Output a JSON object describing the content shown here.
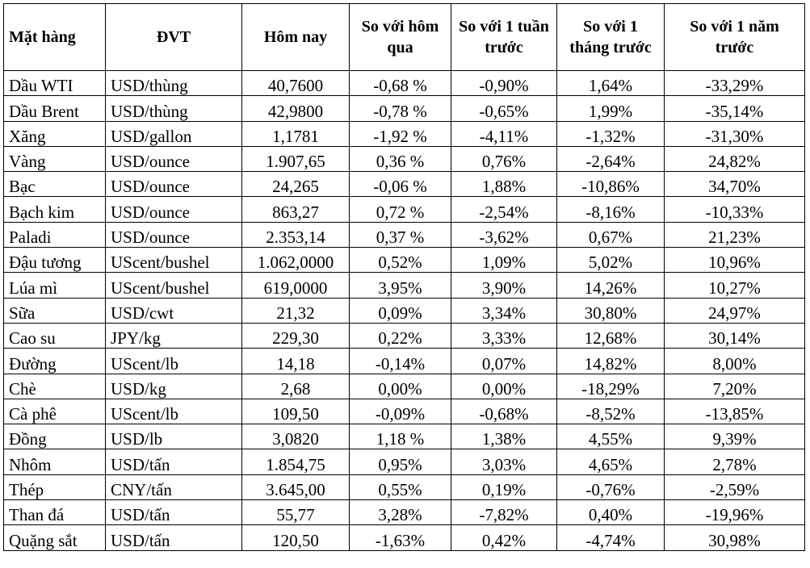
{
  "table": {
    "headers": [
      "Mặt hàng",
      "ĐVT",
      "Hôm nay",
      "So với hôm qua",
      "So với 1 tuần trước",
      "So với 1 tháng trước",
      "So với 1 năm trước"
    ],
    "rows": [
      [
        "Dầu WTI",
        "USD/thùng",
        "40,7600",
        "-0,68 %",
        "-0,90%",
        "1,64%",
        "-33,29%"
      ],
      [
        "Dầu Brent",
        "USD/thùng",
        "42,9800",
        "-0,78 %",
        "-0,65%",
        "1,99%",
        "-35,14%"
      ],
      [
        "Xăng",
        "USD/gallon",
        "1,1781",
        "-1,92 %",
        "-4,11%",
        "-1,32%",
        "-31,30%"
      ],
      [
        "Vàng",
        "USD/ounce",
        "1.907,65",
        "0,36 %",
        "0,76%",
        "-2,64%",
        "24,82%"
      ],
      [
        "Bạc",
        "USD/ounce",
        "24,265",
        "-0,06 %",
        "1,88%",
        "-10,86%",
        "34,70%"
      ],
      [
        "Bạch kim",
        "USD/ounce",
        "863,27",
        "0,72 %",
        "-2,54%",
        "-8,16%",
        "-10,33%"
      ],
      [
        "Paladi",
        "USD/ounce",
        "2.353,14",
        "0,37 %",
        "-3,62%",
        "0,67%",
        "21,23%"
      ],
      [
        "Đậu tương",
        "UScent/bushel",
        "1.062,0000",
        "0,52%",
        "1,09%",
        "5,02%",
        "10,96%"
      ],
      [
        "Lúa mì",
        "UScent/bushel",
        "619,0000",
        "3,95%",
        "3,90%",
        "14,26%",
        "10,27%"
      ],
      [
        "Sữa",
        "USD/cwt",
        "21,32",
        "0,09%",
        "3,34%",
        "30,80%",
        "24,97%"
      ],
      [
        "Cao su",
        "JPY/kg",
        "229,30",
        "0,22%",
        "3,33%",
        "12,68%",
        "30,14%"
      ],
      [
        "Đường",
        "UScent/lb",
        "14,18",
        "-0,14%",
        "0,07%",
        "14,82%",
        "8,00%"
      ],
      [
        "Chè",
        "USD/kg",
        "2,68",
        "0,00%",
        "0,00%",
        "-18,29%",
        "7,20%"
      ],
      [
        "Cà phê",
        "UScent/lb",
        "109,50",
        "-0,09%",
        "-0,68%",
        "-8,52%",
        "-13,85%"
      ],
      [
        "Đồng",
        "USD/lb",
        "3,0820",
        "1,18 %",
        "1,38%",
        "4,55%",
        "9,39%"
      ],
      [
        "Nhôm",
        "USD/tấn",
        "1.854,75",
        "0,95%",
        "3,03%",
        "4,65%",
        "2,78%"
      ],
      [
        "Thép",
        "CNY/tấn",
        "3.645,00",
        "0,55%",
        "0,19%",
        "-0,76%",
        "-2,59%"
      ],
      [
        "Than đá",
        "USD/tấn",
        "55,77",
        "3,28%",
        "-7,82%",
        "0,40%",
        "-19,96%"
      ],
      [
        "Quặng sắt",
        "USD/tấn",
        "120,50",
        "-1,63%",
        "0,42%",
        "-4,74%",
        "30,98%"
      ]
    ]
  }
}
